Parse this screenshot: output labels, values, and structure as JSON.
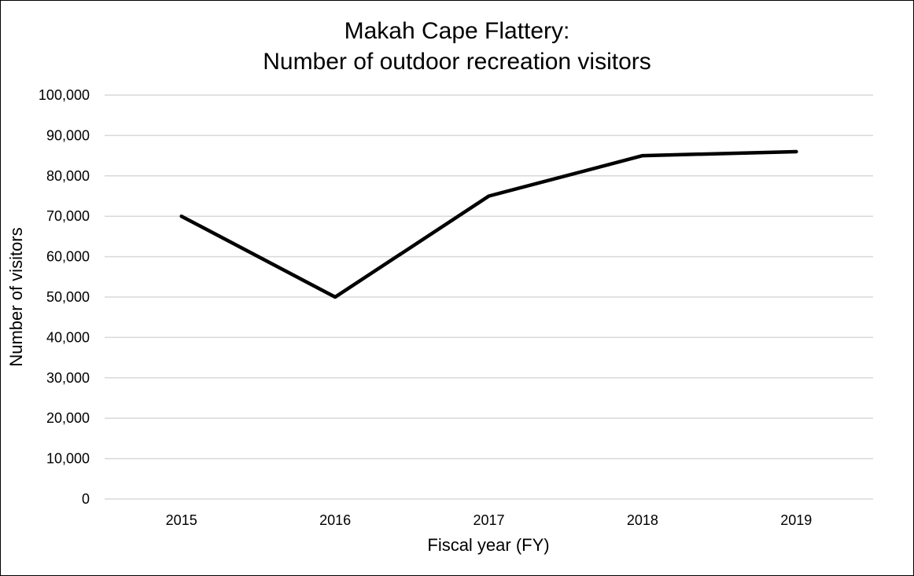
{
  "chart_data": {
    "type": "line",
    "title": "Makah Cape Flattery:",
    "subtitle": "Number of outdoor recreation visitors",
    "xlabel": "Fiscal year (FY)",
    "ylabel": "Number of visitors",
    "categories": [
      "2015",
      "2016",
      "2017",
      "2018",
      "2019"
    ],
    "series": [
      {
        "values": [
          70000,
          50000,
          75000,
          85000,
          86000
        ],
        "color": "#000000"
      }
    ],
    "ylim": [
      0,
      100000
    ],
    "yticks": [
      0,
      10000,
      20000,
      30000,
      40000,
      50000,
      60000,
      70000,
      80000,
      90000,
      100000
    ],
    "ytick_labels": [
      "0",
      "10,000",
      "20,000",
      "30,000",
      "40,000",
      "50,000",
      "60,000",
      "70,000",
      "80,000",
      "90,000",
      "100,000"
    ],
    "grid": true,
    "grid_color": "#d9d9d9",
    "legend": "none"
  }
}
